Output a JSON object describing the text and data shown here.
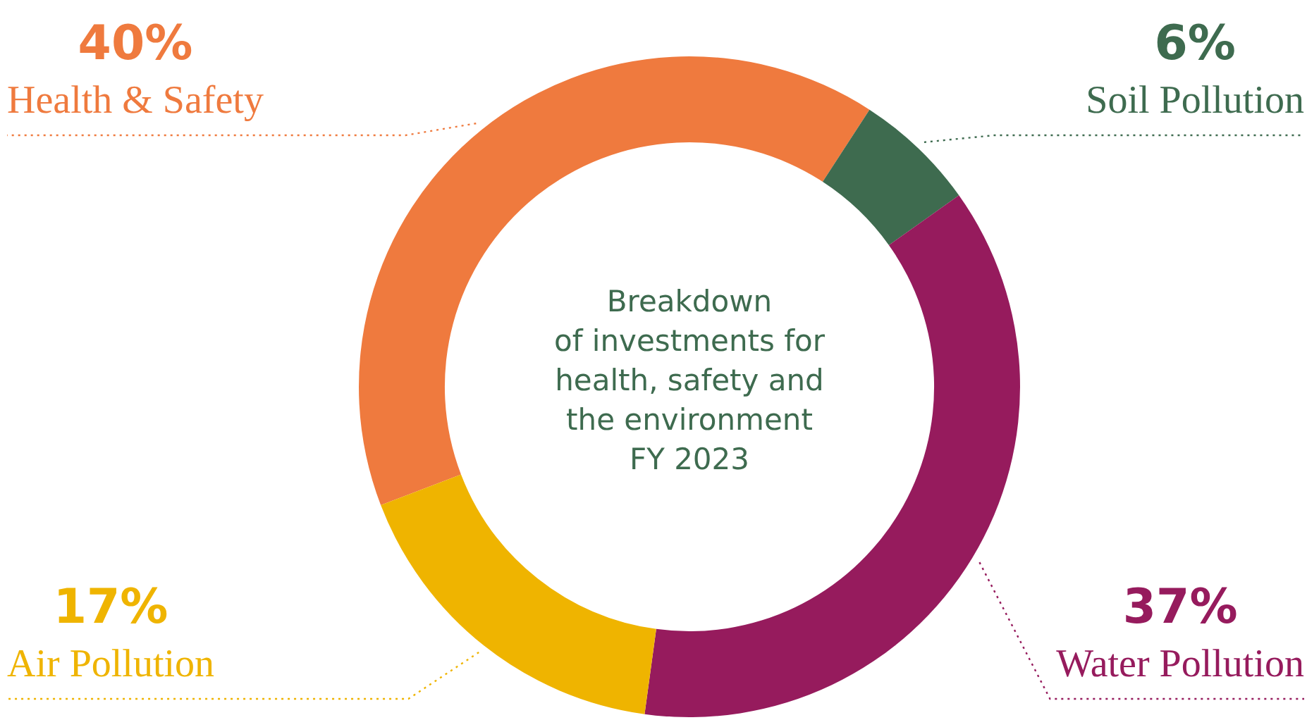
{
  "chart_data": {
    "type": "donut",
    "title": "Breakdown\nof investments for\nhealth, safety and\nthe environment\nFY 2023",
    "categories": [
      "Health & Safety",
      "Soil Pollution",
      "Water Pollution",
      "Air Pollution"
    ],
    "values": [
      40,
      6,
      37,
      17
    ],
    "value_labels": [
      "40%",
      "6%",
      "37%",
      "17%"
    ],
    "colors": [
      "#ef7a3e",
      "#3e6b4f",
      "#961b5d",
      "#efb400"
    ],
    "legend": false
  }
}
